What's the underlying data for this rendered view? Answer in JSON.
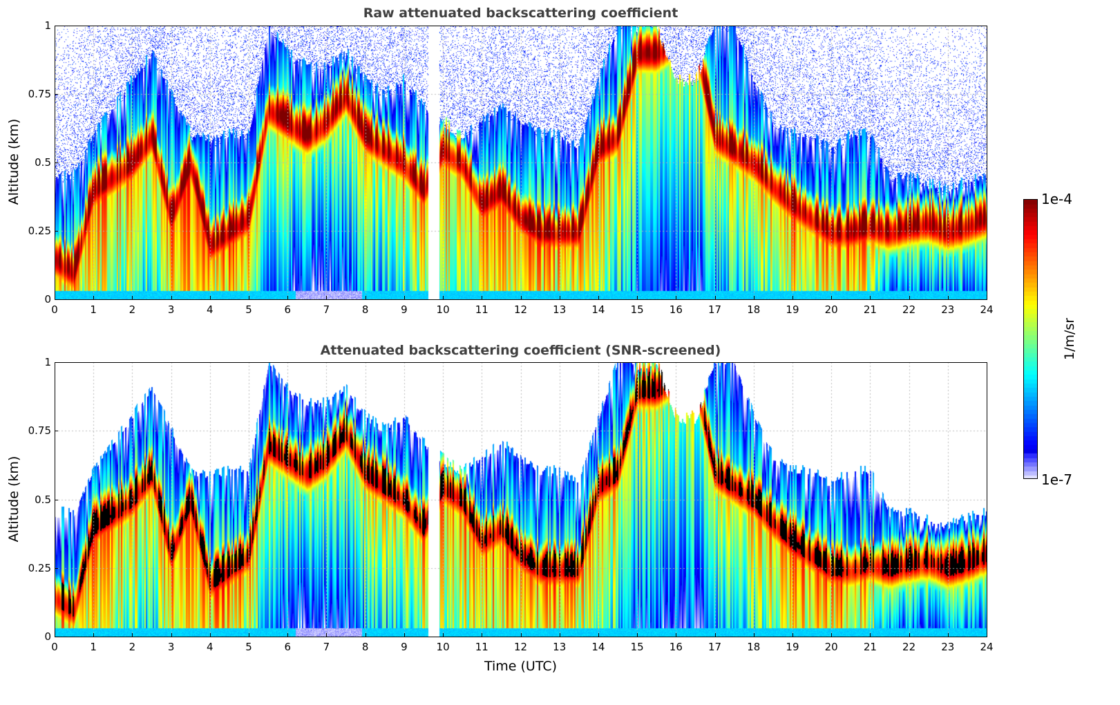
{
  "chart_data": [
    {
      "type": "heatmap",
      "title": "Raw attenuated backscattering coefficient",
      "xlabel": "",
      "ylabel": "Altitude (km)",
      "xlim": [
        0,
        24
      ],
      "ylim": [
        0,
        1
      ],
      "xticks": [
        "0",
        "1",
        "2",
        "3",
        "4",
        "5",
        "6",
        "7",
        "8",
        "9",
        "10",
        "11",
        "12",
        "13",
        "14",
        "15",
        "16",
        "17",
        "18",
        "19",
        "20",
        "21",
        "22",
        "23",
        "24"
      ],
      "yticks": [
        "0",
        "0.25",
        "0.5",
        "0.75",
        "1"
      ],
      "grid": true,
      "screened": false
    },
    {
      "type": "heatmap",
      "title": "Attenuated backscattering coefficient (SNR-screened)",
      "xlabel": "Time (UTC)",
      "ylabel": "Altitude (km)",
      "xlim": [
        0,
        24
      ],
      "ylim": [
        0,
        1
      ],
      "xticks": [
        "0",
        "1",
        "2",
        "3",
        "4",
        "5",
        "6",
        "7",
        "8",
        "9",
        "10",
        "11",
        "12",
        "13",
        "14",
        "15",
        "16",
        "17",
        "18",
        "19",
        "20",
        "21",
        "22",
        "23",
        "24"
      ],
      "yticks": [
        "0",
        "0.25",
        "0.5",
        "0.75",
        "1"
      ],
      "grid": true,
      "screened": true
    }
  ],
  "profile": {
    "time_h": [
      0,
      0.5,
      1,
      1.5,
      2,
      2.5,
      3,
      3.5,
      4,
      4.5,
      5,
      5.5,
      6,
      6.5,
      7,
      7.5,
      8,
      8.5,
      9,
      9.5,
      10,
      10.5,
      11,
      11.5,
      12,
      12.5,
      13,
      13.5,
      14,
      14.5,
      15,
      15.5,
      16,
      16.5,
      17,
      17.5,
      18,
      18.5,
      19,
      19.5,
      20,
      20.5,
      21,
      21.5,
      22,
      22.5,
      23,
      23.5,
      24
    ],
    "layer_peak_km": [
      0.15,
      0.1,
      0.4,
      0.45,
      0.5,
      0.6,
      0.3,
      0.5,
      0.2,
      0.25,
      0.3,
      0.7,
      0.65,
      0.6,
      0.65,
      0.75,
      0.6,
      0.55,
      0.5,
      0.4,
      0.55,
      0.5,
      0.35,
      0.4,
      0.3,
      0.25,
      0.25,
      0.25,
      0.55,
      0.6,
      0.9,
      0.9,
      0.95,
      0.95,
      0.6,
      0.55,
      0.5,
      0.42,
      0.35,
      0.3,
      0.25,
      0.25,
      0.27,
      0.25,
      0.27,
      0.28,
      0.25,
      0.27,
      0.3
    ],
    "signal_top_km": [
      0.45,
      0.45,
      0.6,
      0.7,
      0.8,
      0.9,
      0.75,
      0.6,
      0.58,
      0.6,
      0.6,
      1.0,
      0.9,
      0.85,
      0.85,
      0.9,
      0.8,
      0.75,
      0.8,
      0.7,
      0.65,
      0.6,
      0.65,
      0.7,
      0.65,
      0.6,
      0.6,
      0.55,
      0.8,
      1.0,
      1.0,
      1.0,
      0.8,
      0.8,
      1.0,
      1.0,
      0.8,
      0.65,
      0.6,
      0.6,
      0.55,
      0.6,
      0.6,
      0.45,
      0.45,
      0.42,
      0.4,
      0.43,
      0.45
    ],
    "below_layer_level": [
      0.6,
      0.6,
      0.55,
      0.5,
      0.45,
      0.35,
      0.6,
      0.6,
      0.6,
      0.6,
      0.55,
      0.25,
      0.15,
      0.12,
      0.12,
      0.15,
      0.3,
      0.3,
      0.4,
      0.5,
      0.5,
      0.5,
      0.6,
      0.6,
      0.6,
      0.6,
      0.6,
      0.55,
      0.5,
      0.35,
      0.2,
      0.15,
      0.15,
      0.15,
      0.25,
      0.35,
      0.4,
      0.5,
      0.55,
      0.6,
      0.6,
      0.6,
      0.5,
      0.2,
      0.2,
      0.2,
      0.2,
      0.2,
      0.2
    ]
  },
  "colorbar": {
    "label": "1/m/sr",
    "max_label": "1e-4",
    "min_label": "1e-7",
    "min": 1e-07,
    "max": 0.0001,
    "scale": "log",
    "colormap": "jet"
  }
}
